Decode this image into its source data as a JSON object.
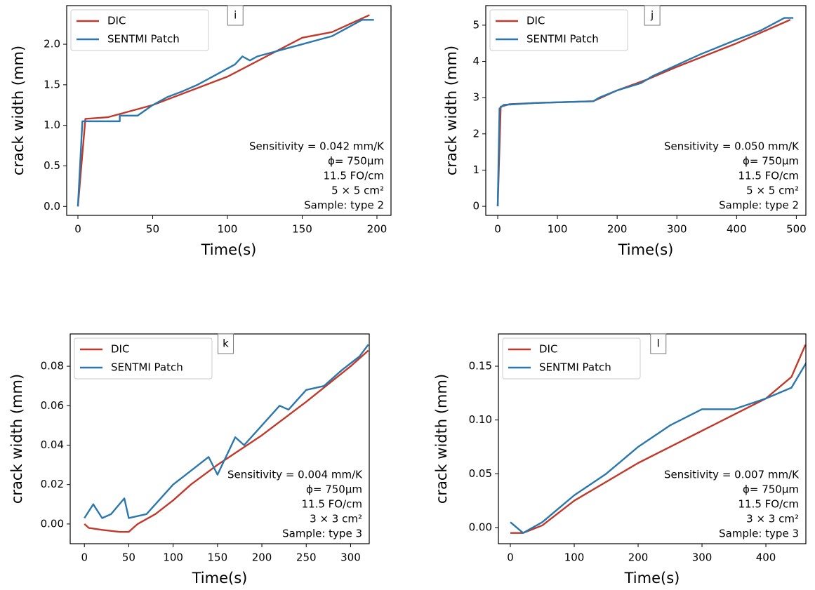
{
  "chart_data": [
    {
      "type": "line",
      "panel_label": "i",
      "x_label": "Time(s)",
      "y_label": "crack width (mm)",
      "legend": "upper left",
      "annotations": [
        "Sensitivity = 0.042 mm/K",
        "ϕ= 750μm",
        "11.5 FO/cm",
        "5 × 5 cm²",
        "Sample: type 2"
      ],
      "xlim": [
        -7.5,
        209.4
      ],
      "ylim": [
        -0.11,
        2.476
      ],
      "xticks": [
        0,
        50,
        100,
        150,
        200
      ],
      "yticks": [
        {
          "value": 0,
          "label": "0.0"
        },
        0.5,
        {
          "value": 1,
          "label": "1.0"
        },
        1.5,
        {
          "value": 2,
          "label": "2.0"
        }
      ],
      "series": [
        {
          "name": "DIC",
          "color": "#c0392b",
          "x": [
            0,
            5,
            20,
            50,
            100,
            150,
            170,
            195
          ],
          "values": [
            0,
            1.08,
            1.1,
            1.25,
            1.6,
            2.08,
            2.15,
            2.36
          ]
        },
        {
          "name": "SENTMI Patch",
          "color": "#2a77ad",
          "x": [
            0,
            3,
            28,
            28,
            40,
            50,
            60,
            70,
            80,
            90,
            100,
            105,
            110,
            115,
            120,
            130,
            140,
            150,
            160,
            170,
            180,
            190,
            198
          ],
          "values": [
            0,
            1.05,
            1.05,
            1.12,
            1.12,
            1.25,
            1.35,
            1.42,
            1.5,
            1.6,
            1.7,
            1.75,
            1.85,
            1.8,
            1.85,
            1.9,
            1.95,
            2.0,
            2.05,
            2.1,
            2.2,
            2.3,
            2.3
          ]
        }
      ]
    },
    {
      "type": "line",
      "panel_label": "j",
      "x_label": "Time(s)",
      "y_label": "crack width (mm)",
      "legend": "upper left",
      "annotations": [
        "Sensitivity = 0.050 mm/K",
        "ϕ= 750μm",
        "11.5 FO/cm",
        "5 × 5 cm²",
        "Sample: type 2"
      ],
      "xlim": [
        -20,
        516
      ],
      "ylim": [
        -0.25,
        5.54
      ],
      "xticks": [
        0,
        100,
        200,
        300,
        400,
        500
      ],
      "yticks": [
        0,
        1,
        2,
        3,
        4,
        5
      ],
      "series": [
        {
          "name": "DIC",
          "color": "#c0392b",
          "x": [
            0,
            5,
            20,
            60,
            160,
            200,
            250,
            300,
            400,
            490
          ],
          "values": [
            0,
            2.75,
            2.82,
            2.85,
            2.9,
            3.2,
            3.5,
            3.85,
            4.5,
            5.15
          ]
        },
        {
          "name": "SENTMI Patch",
          "color": "#2a77ad",
          "x": [
            0,
            3,
            10,
            60,
            160,
            170,
            200,
            240,
            260,
            300,
            340,
            400,
            440,
            480,
            495
          ],
          "values": [
            0,
            2.7,
            2.8,
            2.85,
            2.9,
            3.0,
            3.2,
            3.4,
            3.6,
            3.9,
            4.2,
            4.6,
            4.85,
            5.2,
            5.2
          ]
        }
      ]
    },
    {
      "type": "line",
      "panel_label": "k",
      "x_label": "Time(s)",
      "y_label": "crack width (mm)",
      "legend": "upper left",
      "annotations": [
        "Sensitivity = 0.004 mm/K",
        "ϕ= 750μm",
        "11.5 FO/cm",
        "3 × 3 cm²",
        "Sample: type 3"
      ],
      "xlim": [
        -16,
        321
      ],
      "ylim": [
        -0.01,
        0.0964
      ],
      "xticks": [
        0,
        50,
        100,
        150,
        200,
        250,
        300
      ],
      "yticks": [
        {
          "value": 0,
          "label": "0.00"
        },
        0.02,
        0.04,
        0.06,
        0.08
      ],
      "series": [
        {
          "name": "DIC",
          "color": "#c0392b",
          "x": [
            0,
            5,
            20,
            40,
            50,
            60,
            80,
            100,
            120,
            150,
            200,
            250,
            300,
            320
          ],
          "values": [
            0,
            -0.002,
            -0.003,
            -0.004,
            -0.004,
            0,
            0.005,
            0.012,
            0.02,
            0.03,
            0.045,
            0.062,
            0.08,
            0.088
          ]
        },
        {
          "name": "SENTMI Patch",
          "color": "#2a77ad",
          "x": [
            0,
            10,
            20,
            30,
            45,
            50,
            70,
            80,
            100,
            120,
            140,
            150,
            170,
            180,
            200,
            220,
            230,
            250,
            270,
            290,
            310,
            320
          ],
          "values": [
            0.003,
            0.01,
            0.003,
            0.005,
            0.013,
            0.003,
            0.005,
            0.01,
            0.02,
            0.027,
            0.034,
            0.025,
            0.044,
            0.04,
            0.05,
            0.06,
            0.058,
            0.068,
            0.07,
            0.078,
            0.085,
            0.091
          ]
        }
      ]
    },
    {
      "type": "line",
      "panel_label": "l",
      "x_label": "Time(s)",
      "y_label": "crack width (mm)",
      "legend": "upper left",
      "annotations": [
        "Sensitivity = 0.007 mm/K",
        "ϕ= 750μm",
        "11.5 FO/cm",
        "3 × 3 cm²",
        "Sample: type 3"
      ],
      "xlim": [
        -18.7,
        462.6
      ],
      "ylim": [
        -0.015,
        0.18
      ],
      "xticks": [
        0,
        100,
        200,
        300,
        400
      ],
      "yticks": [
        {
          "value": 0,
          "label": "0.00"
        },
        0.05,
        {
          "value": 0.1,
          "label": "0.10"
        },
        0.15
      ],
      "series": [
        {
          "name": "DIC",
          "color": "#c0392b",
          "x": [
            0,
            20,
            50,
            100,
            200,
            300,
            400,
            440,
            462
          ],
          "values": [
            -0.005,
            -0.005,
            0.002,
            0.025,
            0.06,
            0.09,
            0.12,
            0.14,
            0.17
          ]
        },
        {
          "name": "SENTMI Patch",
          "color": "#2a77ad",
          "x": [
            0,
            20,
            50,
            80,
            100,
            150,
            200,
            250,
            300,
            350,
            400,
            440,
            465
          ],
          "values": [
            0.005,
            -0.005,
            0.005,
            0.02,
            0.03,
            0.05,
            0.075,
            0.095,
            0.11,
            0.11,
            0.12,
            0.13,
            0.155
          ]
        }
      ]
    }
  ]
}
